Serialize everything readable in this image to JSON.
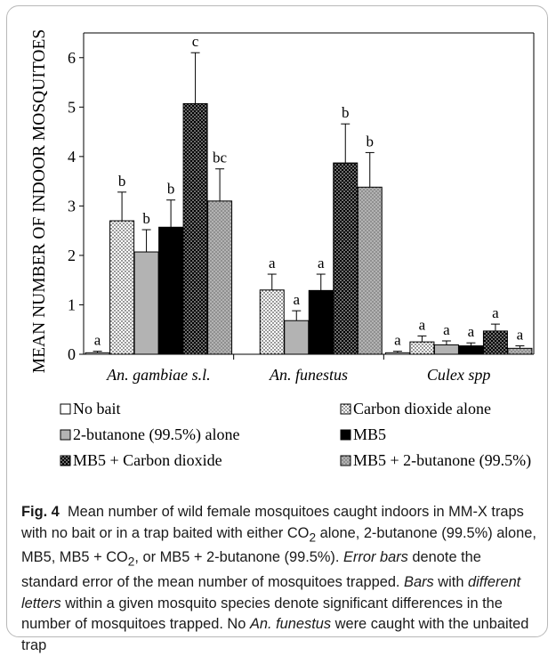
{
  "chart_data": {
    "type": "bar",
    "ylabel": "MEAN NUMBER OF INDOOR MOSQUITOES",
    "ylim": [
      0,
      6.5
    ],
    "yticks": [
      0,
      1,
      2,
      3,
      4,
      5,
      6
    ],
    "categories": [
      "An. gambiae s.l.",
      "An. funestus",
      "Culex spp"
    ],
    "series": [
      {
        "name": "No bait",
        "pattern": "white",
        "values": [
          0.03,
          0.0,
          0.03
        ],
        "errors": [
          0.03,
          0.0,
          0.03
        ],
        "letters": [
          "a",
          "",
          "a"
        ]
      },
      {
        "name": "Carbon dioxide alone",
        "pattern": "dots-on-white",
        "values": [
          2.7,
          1.3,
          0.25
        ],
        "errors": [
          0.58,
          0.32,
          0.12
        ],
        "letters": [
          "b",
          "a",
          "a"
        ]
      },
      {
        "name": "2-butanone (99.5%) alone",
        "pattern": "gray",
        "values": [
          2.07,
          0.68,
          0.19
        ],
        "errors": [
          0.45,
          0.2,
          0.08
        ],
        "letters": [
          "b",
          "a",
          "a"
        ]
      },
      {
        "name": "MB5",
        "pattern": "black",
        "values": [
          2.57,
          1.29,
          0.17
        ],
        "errors": [
          0.55,
          0.33,
          0.06
        ],
        "letters": [
          "b",
          "a",
          "a"
        ]
      },
      {
        "name": "MB5 + Carbon dioxide",
        "pattern": "white-dots-on-black",
        "values": [
          5.07,
          3.87,
          0.47
        ],
        "errors": [
          1.03,
          0.79,
          0.14
        ],
        "letters": [
          "c",
          "b",
          "a"
        ]
      },
      {
        "name": "MB5 + 2-butanone (99.5%)",
        "pattern": "dots-on-gray",
        "values": [
          3.1,
          3.38,
          0.12
        ],
        "errors": [
          0.65,
          0.7,
          0.05
        ],
        "letters": [
          "bc",
          "b",
          "a"
        ]
      }
    ],
    "grid": false,
    "legend_position": "bottom",
    "colors": {
      "gray": "#b3b3b3",
      "black": "#000000",
      "white": "#ffffff"
    }
  },
  "caption": {
    "label": "Fig. 4",
    "p1": "Mean number of wild female mosquitoes caught indoors in MM-X traps with no bait or in a trap baited with either CO",
    "sub2a": "2",
    "p2": " alone, 2-butanone (99.5%) alone, MB5, MB5 + CO",
    "sub2b": "2",
    "p3": ", or MB5 + 2-butanone (99.5%). ",
    "i1": "Error bars",
    "p4": " denote the standard error of the mean number of mosquitoes trapped. ",
    "i2": "Bars",
    "p5": " with ",
    "i3": "different letters",
    "p6": " within a given mosquito species denote significant differences in the number of mosquitoes trapped. No ",
    "i4": "An. funestus",
    "p7": " were caught with the unbaited trap"
  }
}
